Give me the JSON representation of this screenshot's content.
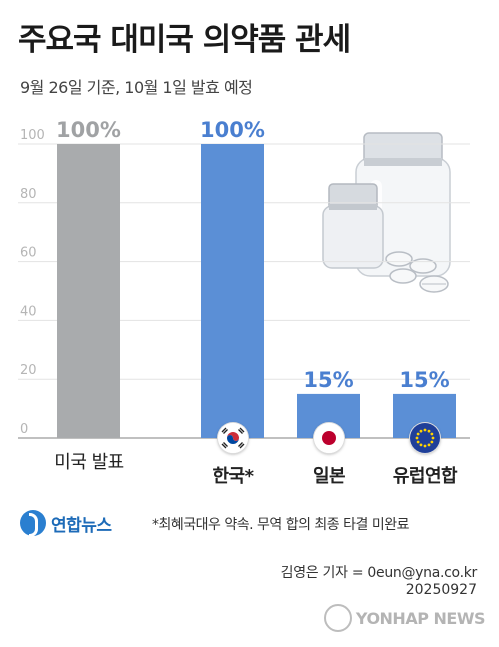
{
  "title": "주요국 대미국 의약품 관세",
  "subtitle": "9월 26일 기준, 10월 1일 발효 예정",
  "chart_data": {
    "type": "bar",
    "categories": [
      "미국 발표",
      "한국*",
      "일본",
      "유럽연합"
    ],
    "values": [
      100,
      100,
      15,
      15
    ],
    "value_labels": [
      "100%",
      "100%",
      "15%",
      "15%"
    ],
    "ylim": [
      0,
      100
    ],
    "yticks": [
      "0",
      "20",
      "40",
      "60",
      "80",
      "100"
    ],
    "grid": true,
    "bar_colors": [
      "#a9abad",
      "#5b8fd6",
      "#5b8fd6",
      "#5b8fd6"
    ],
    "value_label_colors": [
      "#a0a2a4",
      "#4a7fd0",
      "#4a7fd0",
      "#4a7fd0"
    ]
  },
  "flags": [
    "south-korea-flag-icon",
    "japan-flag-icon",
    "eu-flag-icon"
  ],
  "illustration": "medicine-bottles-and-pills",
  "logo": {
    "text": "연합뉴스"
  },
  "note": "*최혜국대우 약속. 무역 합의 최종 타결 미완료",
  "credit": "김영은 기자 = 0eun@yna.co.kr",
  "date": "20250927",
  "watermark": "YONHAP NEWS"
}
